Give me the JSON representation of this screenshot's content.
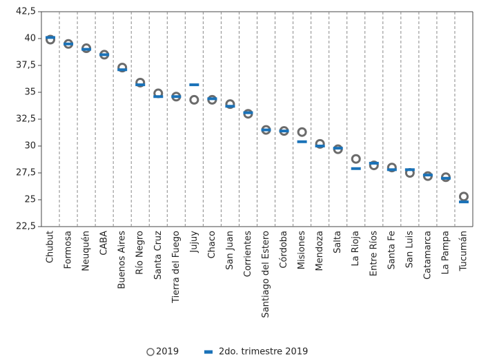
{
  "chart_data": {
    "type": "dot",
    "categories": [
      "Chubut",
      "Formosa",
      "Neuquén",
      "CABA",
      "Buenos Aires",
      "Río Negro",
      "Santa Cruz",
      "Tierra del Fuego",
      "Jujuy",
      "Chaco",
      "San Juan",
      "Corrientes",
      "Santiago del Estero",
      "Córdoba",
      "Misiones",
      "Mendoza",
      "Salta",
      "La Rioja",
      "Entre Ríos",
      "Santa Fe",
      "San Luis",
      "Catamarca",
      "La Pampa",
      "Tucumán"
    ],
    "series": [
      {
        "name": "2019",
        "color": "#6b6b6b",
        "marker": "circle",
        "values": [
          39.9,
          39.5,
          39.1,
          38.5,
          37.3,
          35.9,
          34.9,
          34.6,
          34.3,
          34.3,
          33.9,
          33.0,
          31.5,
          31.4,
          31.3,
          30.2,
          29.7,
          28.8,
          28.2,
          28.0,
          27.5,
          27.2,
          27.1,
          25.3
        ]
      },
      {
        "name": "2do. trimestre 2019",
        "color": "#1a72b8",
        "marker": "dash",
        "values": [
          40.1,
          39.5,
          39.0,
          38.5,
          37.1,
          35.7,
          34.6,
          34.6,
          35.7,
          34.4,
          33.7,
          33.1,
          31.5,
          31.4,
          30.4,
          30.0,
          29.8,
          27.9,
          28.4,
          27.8,
          27.8,
          27.3,
          27.0,
          24.8
        ]
      }
    ],
    "ylim": [
      22.5,
      42.5
    ],
    "yticks": [
      {
        "value": 22.5,
        "label": "22,5"
      },
      25,
      {
        "value": 27.5,
        "label": "27,5"
      },
      30,
      {
        "value": 32.5,
        "label": "32,5"
      },
      35,
      {
        "value": 37.5,
        "label": "37,5"
      },
      40,
      {
        "value": 42.5,
        "label": "42,5"
      }
    ],
    "legend": "bottom"
  }
}
